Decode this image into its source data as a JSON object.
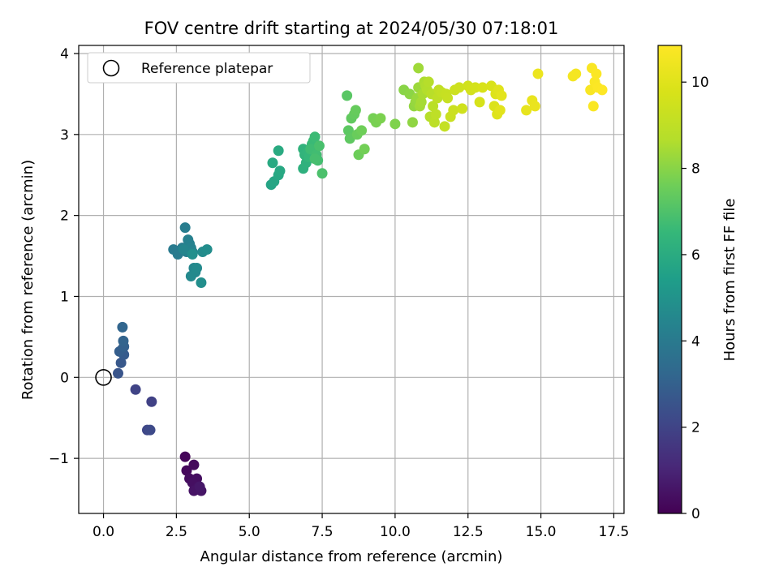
{
  "chart_data": {
    "type": "scatter",
    "title": "FOV centre drift starting at 2024/05/30 07:18:01",
    "xlabel": "Angular distance from reference (arcmin)",
    "ylabel": "Rotation from reference (arcmin)",
    "xlim": [
      -0.85,
      17.85
    ],
    "ylim": [
      -1.68,
      4.1
    ],
    "xticks": [
      0.0,
      2.5,
      5.0,
      7.5,
      10.0,
      12.5,
      15.0,
      17.5
    ],
    "xtick_labels": [
      "0.0",
      "2.5",
      "5.0",
      "7.5",
      "10.0",
      "12.5",
      "15.0",
      "17.5"
    ],
    "yticks": [
      -1,
      0,
      1,
      2,
      3,
      4
    ],
    "ytick_labels": [
      "−1",
      "0",
      "1",
      "2",
      "3",
      "4"
    ],
    "grid": true,
    "legend": {
      "placement": "upper-left",
      "entries": [
        {
          "label": "Reference platepar",
          "marker": "open-circle"
        }
      ]
    },
    "reference_point": {
      "x": 0.0,
      "y": 0.0
    },
    "colorbar": {
      "label": "Hours from first FF file",
      "range": [
        0,
        10.85
      ],
      "ticks": [
        0,
        2,
        4,
        6,
        8,
        10
      ],
      "tick_labels": [
        "0",
        "2",
        "4",
        "6",
        "8",
        "10"
      ],
      "colormap": "viridis"
    },
    "points": [
      [
        2.8,
        -0.98,
        0.15
      ],
      [
        2.85,
        -1.15,
        0.2
      ],
      [
        3.1,
        -1.08,
        0.25
      ],
      [
        2.95,
        -1.25,
        0.3
      ],
      [
        3.2,
        -1.25,
        0.35
      ],
      [
        3.05,
        -1.3,
        0.4
      ],
      [
        3.25,
        -1.35,
        0.45
      ],
      [
        3.1,
        -1.4,
        0.5
      ],
      [
        3.35,
        -1.4,
        0.55
      ],
      [
        3.3,
        -1.35,
        0.6
      ],
      [
        1.65,
        -0.3,
        1.9
      ],
      [
        1.1,
        -0.15,
        2.0
      ],
      [
        1.5,
        -0.65,
        2.1
      ],
      [
        1.6,
        -0.65,
        2.2
      ],
      [
        0.5,
        0.05,
        2.6
      ],
      [
        0.6,
        0.18,
        2.7
      ],
      [
        0.7,
        0.28,
        2.8
      ],
      [
        0.65,
        0.35,
        2.85
      ],
      [
        0.55,
        0.32,
        2.9
      ],
      [
        0.7,
        0.38,
        3.0
      ],
      [
        0.68,
        0.45,
        3.1
      ],
      [
        0.65,
        0.62,
        3.2
      ],
      [
        2.4,
        1.58,
        4.0
      ],
      [
        2.55,
        1.52,
        4.05
      ],
      [
        2.7,
        1.6,
        4.1
      ],
      [
        2.8,
        1.85,
        4.15
      ],
      [
        2.85,
        1.55,
        4.2
      ],
      [
        2.9,
        1.7,
        4.25
      ],
      [
        2.95,
        1.65,
        4.3
      ],
      [
        3.0,
        1.6,
        4.35
      ],
      [
        3.05,
        1.55,
        4.4
      ],
      [
        2.75,
        1.58,
        4.45
      ],
      [
        3.1,
        1.35,
        4.5
      ],
      [
        3.15,
        1.3,
        4.55
      ],
      [
        3.0,
        1.25,
        4.6
      ],
      [
        3.2,
        1.35,
        4.65
      ],
      [
        3.4,
        1.55,
        4.7
      ],
      [
        3.55,
        1.58,
        4.75
      ],
      [
        3.35,
        1.17,
        4.8
      ],
      [
        3.05,
        1.52,
        4.85
      ],
      [
        5.75,
        2.38,
        5.7
      ],
      [
        5.85,
        2.42,
        5.75
      ],
      [
        6.0,
        2.5,
        5.8
      ],
      [
        6.05,
        2.55,
        5.85
      ],
      [
        5.8,
        2.65,
        5.9
      ],
      [
        6.0,
        2.8,
        5.95
      ],
      [
        6.85,
        2.58,
        6.2
      ],
      [
        6.95,
        2.65,
        6.25
      ],
      [
        6.85,
        2.82,
        6.3
      ],
      [
        6.9,
        2.75,
        6.35
      ],
      [
        7.0,
        2.78,
        6.4
      ],
      [
        7.05,
        2.72,
        6.45
      ],
      [
        7.1,
        2.8,
        6.5
      ],
      [
        7.15,
        2.88,
        6.55
      ],
      [
        7.2,
        2.92,
        6.6
      ],
      [
        7.25,
        2.97,
        6.65
      ],
      [
        7.1,
        2.82,
        6.7
      ],
      [
        7.3,
        2.75,
        6.75
      ],
      [
        7.35,
        2.68,
        6.8
      ],
      [
        7.25,
        2.7,
        6.85
      ],
      [
        7.4,
        2.86,
        6.9
      ],
      [
        7.5,
        2.52,
        6.95
      ],
      [
        8.35,
        3.48,
        7.2
      ],
      [
        8.4,
        3.05,
        7.25
      ],
      [
        8.45,
        2.95,
        7.3
      ],
      [
        8.5,
        3.2,
        7.35
      ],
      [
        8.6,
        3.25,
        7.4
      ],
      [
        8.65,
        3.3,
        7.45
      ],
      [
        8.7,
        3.0,
        7.5
      ],
      [
        8.75,
        2.75,
        7.55
      ],
      [
        8.85,
        3.05,
        7.6
      ],
      [
        8.95,
        2.82,
        7.65
      ],
      [
        9.25,
        3.2,
        7.7
      ],
      [
        9.35,
        3.15,
        7.75
      ],
      [
        9.5,
        3.2,
        7.8
      ],
      [
        10.0,
        3.13,
        7.85
      ],
      [
        10.3,
        3.55,
        8.0
      ],
      [
        10.5,
        3.5,
        8.05
      ],
      [
        10.6,
        3.15,
        8.1
      ],
      [
        10.65,
        3.35,
        8.15
      ],
      [
        10.7,
        3.4,
        8.2
      ],
      [
        10.75,
        3.45,
        8.25
      ],
      [
        10.8,
        3.58,
        8.3
      ],
      [
        10.8,
        3.82,
        8.35
      ],
      [
        10.85,
        3.35,
        8.4
      ],
      [
        10.9,
        3.4,
        8.45
      ],
      [
        10.95,
        3.5,
        8.5
      ],
      [
        11.0,
        3.65,
        8.55
      ],
      [
        11.05,
        3.6,
        8.6
      ],
      [
        11.1,
        3.55,
        8.65
      ],
      [
        11.15,
        3.65,
        8.7
      ],
      [
        11.2,
        3.22,
        8.75
      ],
      [
        11.25,
        3.5,
        8.8
      ],
      [
        11.3,
        3.35,
        8.85
      ],
      [
        11.35,
        3.15,
        8.9
      ],
      [
        11.4,
        3.25,
        8.95
      ],
      [
        11.45,
        3.45,
        9.0
      ],
      [
        11.5,
        3.55,
        9.05
      ],
      [
        11.6,
        3.52,
        9.1
      ],
      [
        11.7,
        3.1,
        9.15
      ],
      [
        11.75,
        3.5,
        9.2
      ],
      [
        11.8,
        3.45,
        9.25
      ],
      [
        11.9,
        3.22,
        9.3
      ],
      [
        12.0,
        3.3,
        9.35
      ],
      [
        12.05,
        3.55,
        9.4
      ],
      [
        12.2,
        3.58,
        9.45
      ],
      [
        12.3,
        3.32,
        9.5
      ],
      [
        12.5,
        3.6,
        9.55
      ],
      [
        12.6,
        3.55,
        9.6
      ],
      [
        12.75,
        3.58,
        9.65
      ],
      [
        12.9,
        3.4,
        9.7
      ],
      [
        13.0,
        3.58,
        9.75
      ],
      [
        13.3,
        3.6,
        9.8
      ],
      [
        13.4,
        3.35,
        9.85
      ],
      [
        13.45,
        3.5,
        9.9
      ],
      [
        13.5,
        3.25,
        9.95
      ],
      [
        13.55,
        3.55,
        10.0
      ],
      [
        13.6,
        3.3,
        10.05
      ],
      [
        13.65,
        3.48,
        10.1
      ],
      [
        14.5,
        3.3,
        10.2
      ],
      [
        14.7,
        3.42,
        10.25
      ],
      [
        14.8,
        3.35,
        10.3
      ],
      [
        14.9,
        3.75,
        10.35
      ],
      [
        16.1,
        3.72,
        10.6
      ],
      [
        16.2,
        3.75,
        10.62
      ],
      [
        16.7,
        3.55,
        10.7
      ],
      [
        16.75,
        3.82,
        10.72
      ],
      [
        16.8,
        3.35,
        10.75
      ],
      [
        16.85,
        3.65,
        10.77
      ],
      [
        16.9,
        3.75,
        10.8
      ],
      [
        16.95,
        3.58,
        10.82
      ],
      [
        17.1,
        3.55,
        10.85
      ]
    ]
  }
}
